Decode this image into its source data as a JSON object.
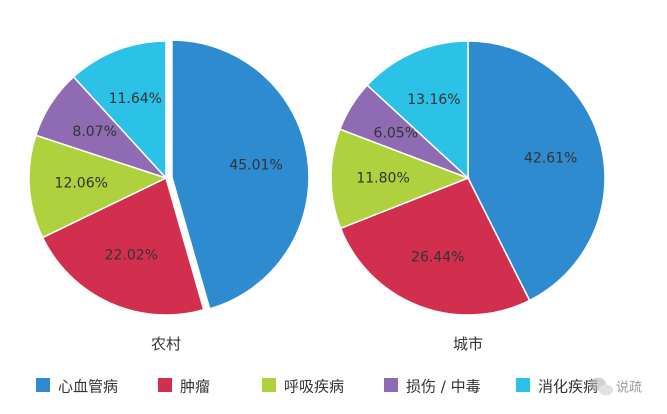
{
  "chart_data": {
    "type": "pie",
    "categories": [
      "心血管病",
      "肿瘤",
      "呼吸疾病",
      "损伤 / 中毒",
      "消化疾病"
    ],
    "colors": [
      "#2f8bcf",
      "#d22f4f",
      "#aed13d",
      "#8e6bb2",
      "#2cc1e6"
    ],
    "charts": [
      {
        "name": "农村",
        "values": [
          45.01,
          22.02,
          12.06,
          8.07,
          11.64
        ],
        "labels": [
          "45.01%",
          "22.02%",
          "12.06%",
          "8.07%",
          "11.64%"
        ],
        "exploded_index": 0
      },
      {
        "name": "城市",
        "values": [
          42.61,
          26.44,
          11.8,
          6.05,
          13.16
        ],
        "labels": [
          "42.61%",
          "26.44%",
          "11.80%",
          "6.05%",
          "13.16%"
        ],
        "exploded_index": null
      }
    ],
    "legend_position": "bottom"
  },
  "watermark": {
    "text": "说疏",
    "icon": "wechat-icon"
  }
}
